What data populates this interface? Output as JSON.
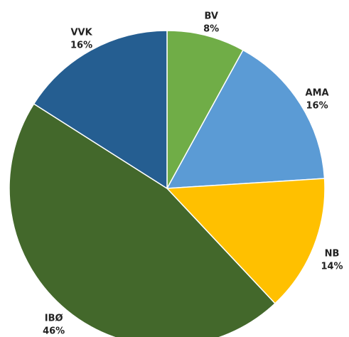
{
  "chart_data": {
    "type": "pie",
    "categories": [
      "BV",
      "AMA",
      "NB",
      "IBØ",
      "VVK"
    ],
    "values": [
      8,
      16,
      14,
      46,
      16
    ],
    "value_labels": [
      "8%",
      "16%",
      "14%",
      "46%",
      "16%"
    ],
    "colors": [
      "#70ad47",
      "#5b9bd5",
      "#ffc000",
      "#43682b",
      "#255e91"
    ]
  }
}
